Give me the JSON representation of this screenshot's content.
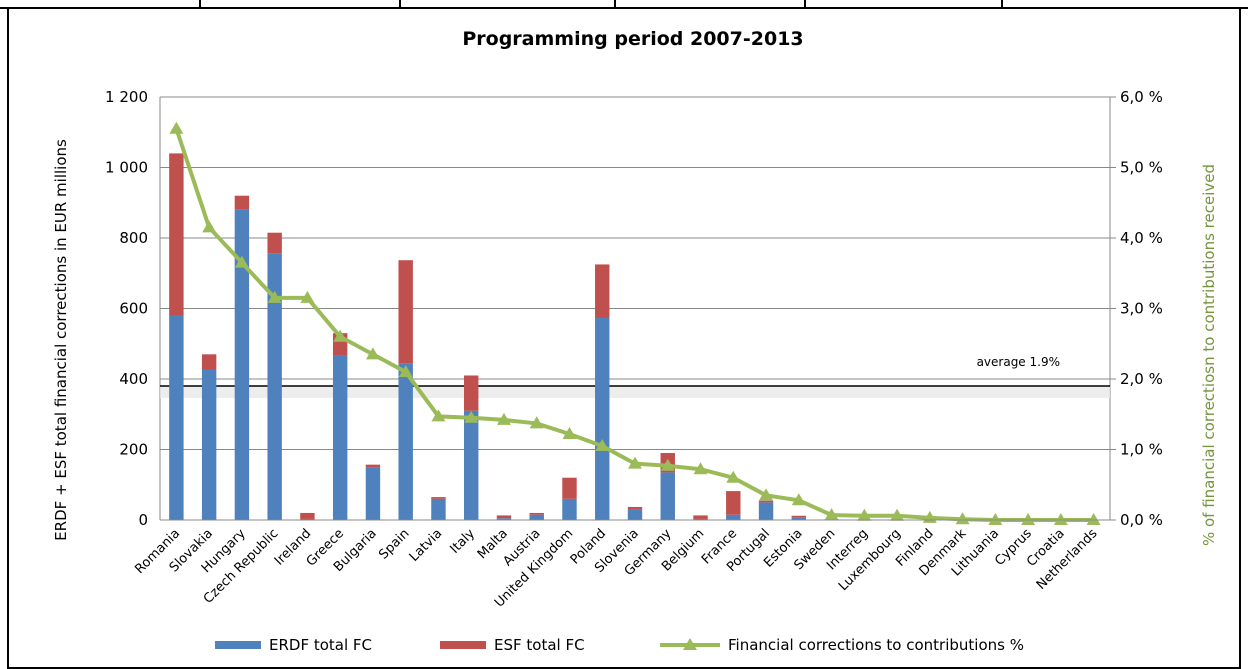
{
  "chart_data": {
    "type": "bar+line",
    "title": "Programming period  2007-2013",
    "y_label": "ERDF + ESF total financial corrections in EUR millions",
    "y2_label": "% of financial correctiosn to contributions received",
    "categories": [
      "Romania",
      "Slovakia",
      "Hungary",
      "Czech Republic",
      "Ireland",
      "Greece",
      "Bulgaria",
      "Spain",
      "Latvia",
      "Italy",
      "Malta",
      "Austria",
      "United Kingdom",
      "Poland",
      "Slovenia",
      "Germany",
      "Belgium",
      "France",
      "Portugal",
      "Estonia",
      "Sweden",
      "Interreg",
      "Luxembourg",
      "Finland",
      "Denmark",
      "Lithuania",
      "Cyprus",
      "Croatia",
      "Netherlands"
    ],
    "series": [
      {
        "name": "ERDF total FC",
        "type": "bar",
        "color": "#4f81bd",
        "values": [
          580,
          427,
          880,
          757,
          3,
          468,
          150,
          445,
          60,
          310,
          5,
          15,
          60,
          573,
          30,
          135,
          3,
          15,
          50,
          8,
          2,
          0,
          0,
          0,
          0,
          0,
          0,
          0,
          0
        ]
      },
      {
        "name": "ESF total FC",
        "type": "bar",
        "color": "#c0504d",
        "values": [
          460,
          43,
          40,
          58,
          17,
          62,
          7,
          292,
          5,
          100,
          8,
          5,
          60,
          152,
          7,
          55,
          10,
          67,
          5,
          4,
          0,
          0,
          0,
          0,
          0,
          0,
          0,
          0,
          0
        ]
      },
      {
        "name": "Financial corrections to contributions %",
        "type": "line",
        "axis": "y2",
        "color": "#9bbb59",
        "values": [
          5.55,
          4.15,
          3.65,
          3.15,
          3.15,
          2.6,
          2.35,
          2.1,
          1.47,
          1.45,
          1.42,
          1.37,
          1.22,
          1.05,
          0.8,
          0.77,
          0.72,
          0.6,
          0.35,
          0.28,
          0.07,
          0.06,
          0.06,
          0.03,
          0.01,
          0,
          0,
          0,
          0
        ]
      }
    ],
    "ylim": [
      0,
      1200
    ],
    "yticks": [
      0,
      200,
      400,
      600,
      800,
      {
        "value": 1000,
        "label": "1 000"
      },
      {
        "value": 1200,
        "label": "1 200"
      }
    ],
    "y2lim": [
      0,
      6
    ],
    "y2ticks": [
      {
        "value": 0,
        "label": "0,0 %"
      },
      {
        "value": 1,
        "label": "1,0 %"
      },
      {
        "value": 2,
        "label": "2,0 %"
      },
      {
        "value": 3,
        "label": "3,0 %"
      },
      {
        "value": 4,
        "label": "4,0 %"
      },
      {
        "value": 5,
        "label": "5,0 %"
      },
      {
        "value": 6,
        "label": "6,0 %"
      }
    ],
    "average_line": {
      "value": 1.9,
      "label": "average 1.9%"
    },
    "grid": true,
    "legend": "bottom"
  }
}
